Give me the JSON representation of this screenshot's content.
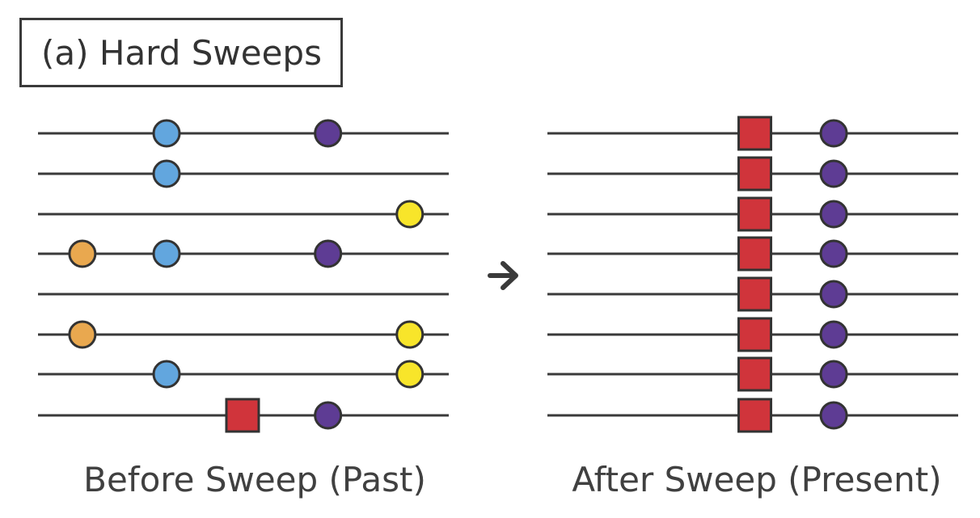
{
  "title": "(a) Hard Sweeps",
  "panels": [
    {
      "label": "Before Sweep (Past)",
      "lines": [
        {
          "markers": [
            {
              "shape": "circle",
              "color": "blue",
              "pos": 0.313
            },
            {
              "shape": "circle",
              "color": "purple",
              "pos": 0.706
            }
          ]
        },
        {
          "markers": [
            {
              "shape": "circle",
              "color": "blue",
              "pos": 0.313
            }
          ]
        },
        {
          "markers": [
            {
              "shape": "circle",
              "color": "yellow",
              "pos": 0.905
            }
          ]
        },
        {
          "markers": [
            {
              "shape": "circle",
              "color": "orange",
              "pos": 0.108
            },
            {
              "shape": "circle",
              "color": "blue",
              "pos": 0.313
            },
            {
              "shape": "circle",
              "color": "purple",
              "pos": 0.706
            }
          ]
        },
        {
          "markers": []
        },
        {
          "markers": [
            {
              "shape": "circle",
              "color": "orange",
              "pos": 0.108
            },
            {
              "shape": "circle",
              "color": "yellow",
              "pos": 0.905
            }
          ]
        },
        {
          "markers": [
            {
              "shape": "circle",
              "color": "blue",
              "pos": 0.313
            },
            {
              "shape": "circle",
              "color": "yellow",
              "pos": 0.905
            }
          ]
        },
        {
          "markers": [
            {
              "shape": "square",
              "color": "red",
              "pos": 0.498
            },
            {
              "shape": "circle",
              "color": "purple",
              "pos": 0.706
            }
          ]
        }
      ]
    },
    {
      "label": "After Sweep (Present)",
      "lines": [
        {
          "markers": [
            {
              "shape": "square",
              "color": "red",
              "pos": 0.505
            },
            {
              "shape": "circle",
              "color": "purple",
              "pos": 0.697
            }
          ]
        },
        {
          "markers": [
            {
              "shape": "square",
              "color": "red",
              "pos": 0.505
            },
            {
              "shape": "circle",
              "color": "purple",
              "pos": 0.697
            }
          ]
        },
        {
          "markers": [
            {
              "shape": "square",
              "color": "red",
              "pos": 0.505
            },
            {
              "shape": "circle",
              "color": "purple",
              "pos": 0.697
            }
          ]
        },
        {
          "markers": [
            {
              "shape": "square",
              "color": "red",
              "pos": 0.505
            },
            {
              "shape": "circle",
              "color": "purple",
              "pos": 0.697
            }
          ]
        },
        {
          "markers": [
            {
              "shape": "square",
              "color": "red",
              "pos": 0.505
            },
            {
              "shape": "circle",
              "color": "purple",
              "pos": 0.697
            }
          ]
        },
        {
          "markers": [
            {
              "shape": "square",
              "color": "red",
              "pos": 0.505
            },
            {
              "shape": "circle",
              "color": "purple",
              "pos": 0.697
            }
          ]
        },
        {
          "markers": [
            {
              "shape": "square",
              "color": "red",
              "pos": 0.505
            },
            {
              "shape": "circle",
              "color": "purple",
              "pos": 0.697
            }
          ]
        },
        {
          "markers": [
            {
              "shape": "square",
              "color": "red",
              "pos": 0.505
            },
            {
              "shape": "circle",
              "color": "purple",
              "pos": 0.697
            }
          ]
        }
      ]
    }
  ],
  "arrow_icon": "arrow-right-icon",
  "colors": {
    "blue": "#62a6de",
    "purple": "#5e3c94",
    "yellow": "#f8e52a",
    "orange": "#e9a84f",
    "red": "#d0343b",
    "line": "#3a3a3a",
    "outline": "#333333"
  }
}
